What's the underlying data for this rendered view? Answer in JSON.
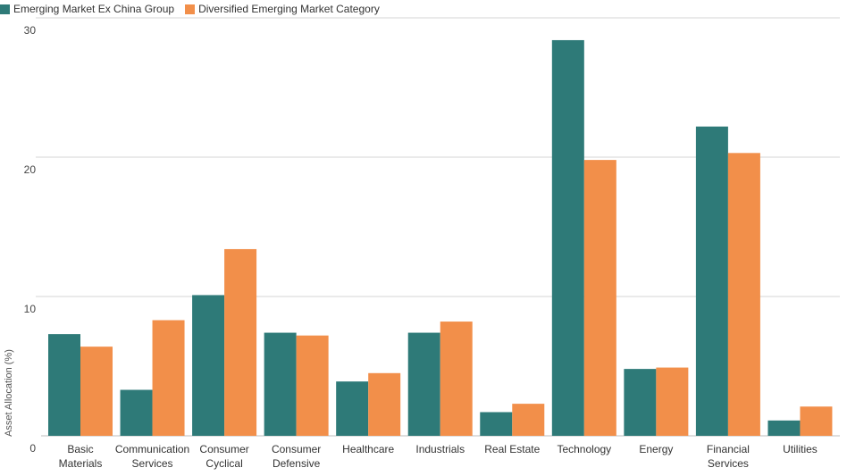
{
  "chart_data": {
    "type": "bar",
    "categories": [
      "Basic Materials",
      "Communication Services",
      "Consumer Cyclical",
      "Consumer Defensive",
      "Healthcare",
      "Industrials",
      "Real Estate",
      "Technology",
      "Energy",
      "Financial Services",
      "Utilities"
    ],
    "series": [
      {
        "name": "Emerging Market Ex China Group",
        "color": "#2e7a78",
        "values": [
          7.3,
          3.3,
          10.1,
          7.4,
          3.9,
          7.4,
          1.7,
          28.4,
          4.8,
          22.2,
          1.1
        ]
      },
      {
        "name": "Diversified Emerging Market Category",
        "color": "#f28f4a",
        "values": [
          6.4,
          8.3,
          13.4,
          7.2,
          4.5,
          8.2,
          2.3,
          19.8,
          4.9,
          20.3,
          2.1
        ]
      }
    ],
    "ylabel": "Asset Allocation (%)",
    "xlabel": "",
    "ylim": [
      0,
      30
    ],
    "yticks": [
      0,
      10,
      20,
      30
    ],
    "grid": true,
    "legend_position": "top-left"
  }
}
